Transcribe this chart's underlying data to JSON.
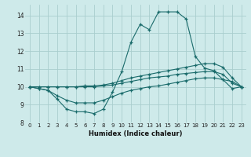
{
  "xlabel": "Humidex (Indice chaleur)",
  "ylabel": "",
  "background_color": "#ceeaea",
  "grid_color": "#aacece",
  "line_color": "#1a6b6b",
  "xlim": [
    -0.5,
    23.5
  ],
  "ylim": [
    8,
    14.6
  ],
  "yticks": [
    8,
    9,
    10,
    11,
    12,
    13,
    14
  ],
  "xticks": [
    0,
    1,
    2,
    3,
    4,
    5,
    6,
    7,
    8,
    9,
    10,
    11,
    12,
    13,
    14,
    15,
    16,
    17,
    18,
    19,
    20,
    21,
    22,
    23
  ],
  "series1_x": [
    0,
    1,
    2,
    3,
    4,
    5,
    6,
    7,
    8,
    9,
    10,
    11,
    12,
    13,
    14,
    15,
    16,
    17,
    18,
    19,
    20,
    21,
    22,
    23
  ],
  "series1_y": [
    10.0,
    9.9,
    9.8,
    9.3,
    8.75,
    8.6,
    8.6,
    8.5,
    8.75,
    9.7,
    10.85,
    12.5,
    13.5,
    13.2,
    14.2,
    14.2,
    14.2,
    13.8,
    11.7,
    11.05,
    10.9,
    10.4,
    10.3,
    10.0
  ],
  "series2_x": [
    0,
    1,
    2,
    3,
    4,
    5,
    6,
    7,
    8,
    9,
    10,
    11,
    12,
    13,
    14,
    15,
    16,
    17,
    18,
    19,
    20,
    21,
    22,
    23
  ],
  "series2_y": [
    10.0,
    10.0,
    10.0,
    10.0,
    10.0,
    10.0,
    10.05,
    10.05,
    10.1,
    10.2,
    10.35,
    10.5,
    10.6,
    10.7,
    10.8,
    10.9,
    11.0,
    11.1,
    11.2,
    11.3,
    11.3,
    11.1,
    10.5,
    10.0
  ],
  "series3_x": [
    0,
    1,
    2,
    3,
    4,
    5,
    6,
    7,
    8,
    9,
    10,
    11,
    12,
    13,
    14,
    15,
    16,
    17,
    18,
    19,
    20,
    21,
    22,
    23
  ],
  "series3_y": [
    10.0,
    10.0,
    10.0,
    10.0,
    10.0,
    10.0,
    10.0,
    10.0,
    10.05,
    10.1,
    10.2,
    10.3,
    10.4,
    10.5,
    10.55,
    10.6,
    10.7,
    10.75,
    10.8,
    10.85,
    10.85,
    10.7,
    10.2,
    10.0
  ],
  "series4_x": [
    0,
    1,
    2,
    3,
    4,
    5,
    6,
    7,
    8,
    9,
    10,
    11,
    12,
    13,
    14,
    15,
    16,
    17,
    18,
    19,
    20,
    21,
    22,
    23
  ],
  "series4_y": [
    10.0,
    9.9,
    9.8,
    9.5,
    9.25,
    9.1,
    9.1,
    9.1,
    9.25,
    9.45,
    9.65,
    9.8,
    9.9,
    10.0,
    10.05,
    10.15,
    10.25,
    10.35,
    10.45,
    10.5,
    10.5,
    10.4,
    9.9,
    10.0
  ]
}
